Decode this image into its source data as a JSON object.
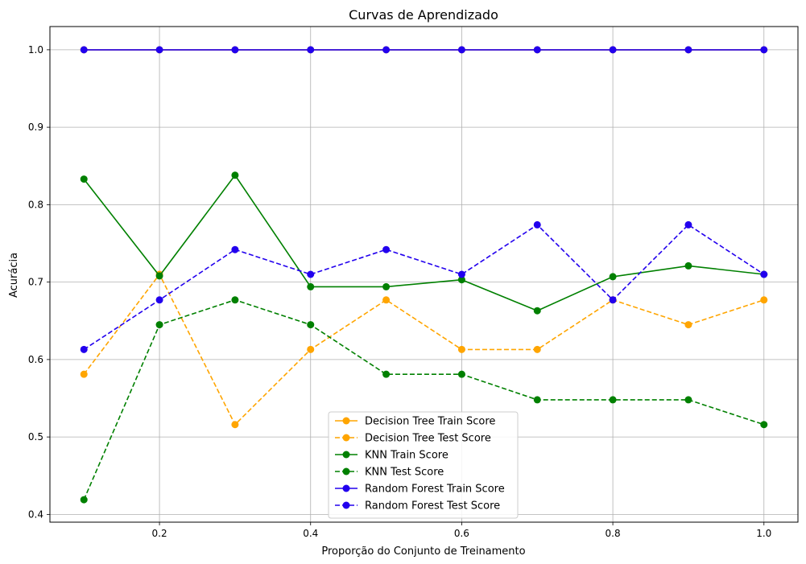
{
  "chart_data": {
    "type": "line",
    "title": "Curvas de Aprendizado",
    "xlabel": "Proporção do Conjunto de Treinamento",
    "ylabel": "Acurácia",
    "xlim": [
      0.055,
      1.045
    ],
    "ylim": [
      0.39,
      1.03
    ],
    "xticks": [
      0.2,
      0.4,
      0.6,
      0.8,
      1.0
    ],
    "xtick_labels": [
      "0.2",
      "0.4",
      "0.6",
      "0.8",
      "1.0"
    ],
    "yticks": [
      0.4,
      0.5,
      0.6,
      0.7,
      0.8,
      0.9,
      1.0
    ],
    "ytick_labels": [
      "0.4",
      "0.5",
      "0.6",
      "0.7",
      "0.8",
      "0.9",
      "1.0"
    ],
    "grid": true,
    "legend_position": "bottom-center",
    "x": [
      0.1,
      0.2,
      0.3,
      0.4,
      0.5,
      0.6,
      0.7,
      0.8,
      0.9,
      1.0
    ],
    "series": [
      {
        "name": "Decision Tree Train Score",
        "color": "#ffa500",
        "dash": "solid",
        "values": [
          1.0,
          1.0,
          1.0,
          1.0,
          1.0,
          1.0,
          1.0,
          1.0,
          1.0,
          1.0
        ]
      },
      {
        "name": "Decision Tree Test Score",
        "color": "#ffa500",
        "dash": "dashed",
        "values": [
          0.581,
          0.71,
          0.516,
          0.613,
          0.677,
          0.613,
          0.613,
          0.677,
          0.645,
          0.677
        ]
      },
      {
        "name": "KNN Train Score",
        "color": "#008000",
        "dash": "solid",
        "values": [
          0.833,
          0.708,
          0.838,
          0.694,
          0.694,
          0.703,
          0.663,
          0.707,
          0.721,
          0.71
        ]
      },
      {
        "name": "KNN Test Score",
        "color": "#008000",
        "dash": "dashed",
        "values": [
          0.419,
          0.645,
          0.677,
          0.645,
          0.581,
          0.581,
          0.548,
          0.548,
          0.548,
          0.516
        ]
      },
      {
        "name": "Random Forest Train Score",
        "color": "#2200ee",
        "dash": "solid",
        "values": [
          1.0,
          1.0,
          1.0,
          1.0,
          1.0,
          1.0,
          1.0,
          1.0,
          1.0,
          1.0
        ]
      },
      {
        "name": "Random Forest Test Score",
        "color": "#2200ee",
        "dash": "dashed",
        "values": [
          0.613,
          0.677,
          0.742,
          0.71,
          0.742,
          0.71,
          0.774,
          0.677,
          0.774,
          0.71
        ]
      }
    ]
  }
}
